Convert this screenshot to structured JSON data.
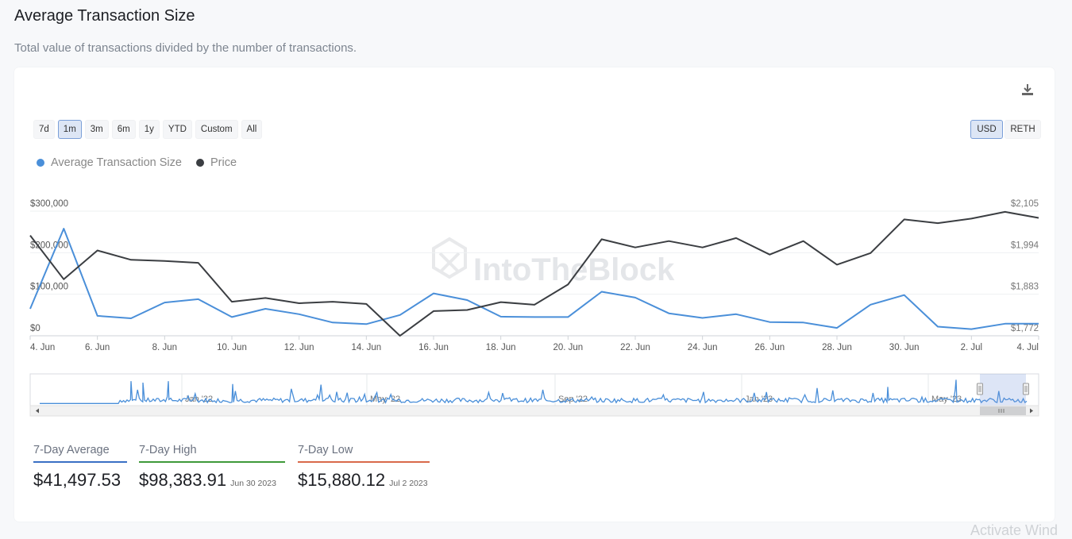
{
  "header": {
    "title": "Average Transaction Size",
    "subtitle": "Total value of transactions divided by the number of transactions."
  },
  "toolbar": {
    "ranges": [
      "7d",
      "1m",
      "3m",
      "6m",
      "1y",
      "YTD",
      "Custom",
      "All"
    ],
    "active_range": "1m",
    "currencies": [
      "USD",
      "RETH"
    ],
    "active_currency": "USD",
    "download_icon": "download-icon"
  },
  "watermark": "IntoTheBlock",
  "colors": {
    "series_avg": "#4a8fd9",
    "series_price": "#3b3e42",
    "avg_underline": "#3a6fc4",
    "high_underline": "#3f9a3a",
    "low_underline": "#d96a4a"
  },
  "chart_data": {
    "type": "line",
    "legend": [
      "Average Transaction Size",
      "Price"
    ],
    "x": [
      "4. Jun",
      "5. Jun",
      "6. Jun",
      "7. Jun",
      "8. Jun",
      "9. Jun",
      "10. Jun",
      "11. Jun",
      "12. Jun",
      "13. Jun",
      "14. Jun",
      "15. Jun",
      "16. Jun",
      "17. Jun",
      "18. Jun",
      "19. Jun",
      "20. Jun",
      "21. Jun",
      "22. Jun",
      "23. Jun",
      "24. Jun",
      "25. Jun",
      "26. Jun",
      "27. Jun",
      "28. Jun",
      "29. Jun",
      "30. Jun",
      "1. Jul",
      "2. Jul",
      "3. Jul",
      "4. Jul"
    ],
    "x_tick_labels": [
      "4. Jun",
      "6. Jun",
      "8. Jun",
      "10. Jun",
      "12. Jun",
      "14. Jun",
      "16. Jun",
      "18. Jun",
      "20. Jun",
      "22. Jun",
      "24. Jun",
      "26. Jun",
      "28. Jun",
      "30. Jun",
      "2. Jul",
      "4. Jul"
    ],
    "series": [
      {
        "name": "Average Transaction Size",
        "axis": "left",
        "values": [
          65000,
          258000,
          48000,
          42000,
          80000,
          88000,
          45000,
          65000,
          52000,
          32000,
          28000,
          50000,
          102000,
          86000,
          46000,
          45000,
          45000,
          106000,
          92000,
          54000,
          43000,
          52000,
          33000,
          32000,
          19000,
          75000,
          98000,
          22000,
          16000,
          29000,
          29000
        ]
      },
      {
        "name": "Price",
        "axis": "right",
        "values": [
          2040,
          1923,
          2000,
          1975,
          1972,
          1967,
          1863,
          1873,
          1859,
          1863,
          1857,
          1772,
          1838,
          1841,
          1862,
          1855,
          1909,
          2030,
          2008,
          2025,
          2008,
          2033,
          1989,
          2025,
          1962,
          1993,
          2083,
          2073,
          2085,
          2103,
          2087
        ]
      }
    ],
    "y_left": {
      "ticks": [
        "$0",
        "$100,000",
        "$200,000",
        "$300,000"
      ],
      "range": [
        0,
        300000
      ]
    },
    "y_right": {
      "ticks": [
        "$1,772",
        "$1,883",
        "$1,994",
        "$2,105"
      ],
      "range": [
        1772,
        2105
      ]
    },
    "navigator": {
      "labels": [
        "Jan '22",
        "May '22",
        "Sep '22",
        "Jan '23",
        "May '23"
      ]
    }
  },
  "stats": [
    {
      "label": "7-Day Average",
      "value": "$41,497.53",
      "date": ""
    },
    {
      "label": "7-Day High",
      "value": "$98,383.91",
      "date": "Jun 30 2023"
    },
    {
      "label": "7-Day Low",
      "value": "$15,880.12",
      "date": "Jul 2 2023"
    }
  ],
  "os_watermark": "Activate Wind"
}
